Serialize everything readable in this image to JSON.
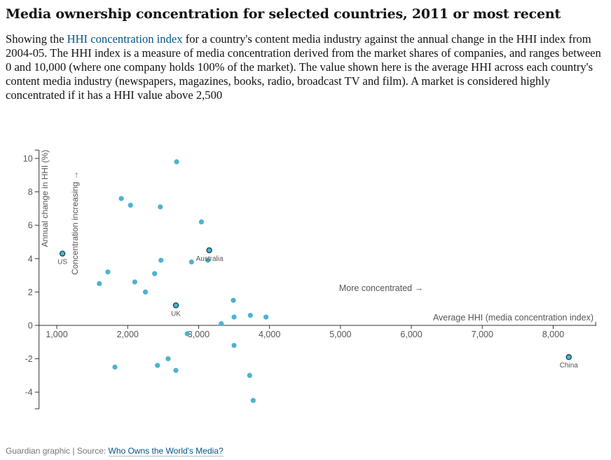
{
  "header": {
    "title": "Media ownership concentration for selected countries, 2011 or most recent",
    "standfirst_before": "Showing the ",
    "standfirst_link": "HHI concentration index",
    "standfirst_after": " for a country's content media industry against the annual change in the HHI index from 2004-05. The HHI index is a measure of media concentration derived from the market shares of companies, and ranges between 0 and 10,000 (where one company holds 100% of the market). The value shown here is the average HHI across each country's content media industry (newspapers, magazines, books, radio, broadcast TV and film). A market is considered highly concentrated if it has a HHI value above 2,500"
  },
  "footer": {
    "credit": "Guardian graphic | Source: ",
    "source_link": "Who Owns the World's Media?"
  },
  "colors": {
    "point": "#4bb3d1",
    "highlight_fill": "#4bb3d1",
    "highlight_stroke": "#0c3b4a",
    "axis": "#333333",
    "text": "#555555"
  },
  "chart_data": {
    "type": "scatter",
    "xlabel": "Average HHI (media concentration index)",
    "ylabel": "Annual change in HHI (%)",
    "y_annotation": "Concentration increasing →",
    "x_annotation": "More concentrated →",
    "xlim": [
      750,
      8600
    ],
    "ylim": [
      -5,
      10.5
    ],
    "x_ticks": [
      1000,
      2000,
      3000,
      4000,
      5000,
      6000,
      7000,
      8000
    ],
    "x_tick_labels": [
      "1,000",
      "2,000",
      "3,000",
      "4,000",
      "5,000",
      "6,000",
      "7,000",
      "8,000"
    ],
    "y_ticks": [
      10,
      8,
      6,
      4,
      2,
      0,
      -2,
      -4
    ],
    "y_tick_labels": [
      "10",
      "8",
      "6",
      "4",
      "2",
      "0",
      "-2",
      "-4"
    ],
    "grid": false,
    "points": [
      {
        "x": 1080,
        "y": 4.3,
        "label": "US",
        "highlight": true
      },
      {
        "x": 3150,
        "y": 4.5,
        "label": "Australia",
        "highlight": true
      },
      {
        "x": 2680,
        "y": 1.2,
        "label": "UK",
        "highlight": true
      },
      {
        "x": 8220,
        "y": -1.9,
        "label": "China",
        "highlight": true
      },
      {
        "x": 2690,
        "y": 9.8
      },
      {
        "x": 1910,
        "y": 7.6
      },
      {
        "x": 2040,
        "y": 7.2
      },
      {
        "x": 2460,
        "y": 7.1
      },
      {
        "x": 3040,
        "y": 6.2
      },
      {
        "x": 2470,
        "y": 3.9
      },
      {
        "x": 2900,
        "y": 3.8
      },
      {
        "x": 3130,
        "y": 3.9
      },
      {
        "x": 1720,
        "y": 3.2
      },
      {
        "x": 2380,
        "y": 3.1
      },
      {
        "x": 1600,
        "y": 2.5
      },
      {
        "x": 2100,
        "y": 2.6
      },
      {
        "x": 2250,
        "y": 2.0
      },
      {
        "x": 3490,
        "y": 1.5
      },
      {
        "x": 3500,
        "y": 0.5
      },
      {
        "x": 3730,
        "y": 0.6
      },
      {
        "x": 3950,
        "y": 0.5
      },
      {
        "x": 3320,
        "y": 0.1
      },
      {
        "x": 2840,
        "y": -0.5
      },
      {
        "x": 3500,
        "y": -1.2
      },
      {
        "x": 2570,
        "y": -2.0
      },
      {
        "x": 1820,
        "y": -2.5
      },
      {
        "x": 2420,
        "y": -2.4
      },
      {
        "x": 2680,
        "y": -2.7
      },
      {
        "x": 3720,
        "y": -3.0
      },
      {
        "x": 3770,
        "y": -4.5
      }
    ]
  }
}
